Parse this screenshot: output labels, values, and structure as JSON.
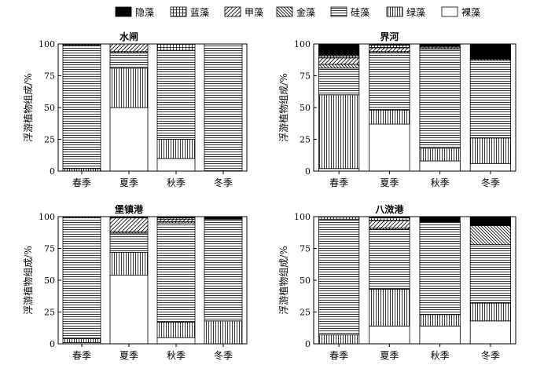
{
  "legend": [
    {
      "key": "hidden",
      "label": "隐藻"
    },
    {
      "key": "blue",
      "label": "蓝藻"
    },
    {
      "key": "dino",
      "label": "甲藻"
    },
    {
      "key": "gold",
      "label": "金藻"
    },
    {
      "key": "diatom",
      "label": "硅藻"
    },
    {
      "key": "green",
      "label": "绿藻"
    },
    {
      "key": "naked",
      "label": "裸藻"
    }
  ],
  "legend_order_bottom_to_top": [
    "naked",
    "green",
    "diatom",
    "gold",
    "dino",
    "blue",
    "hidden"
  ],
  "chart_data": [
    {
      "type": "bar",
      "stacked": true,
      "title": "水闸",
      "ylabel": "浮游植物组成/%",
      "categories": [
        "春季",
        "夏季",
        "秋季",
        "冬季"
      ],
      "ylim": [
        0,
        100
      ],
      "yticks": [
        0,
        25,
        50,
        75,
        100
      ],
      "series": [
        {
          "key": "naked",
          "name": "裸藻",
          "values": [
            0,
            50,
            10,
            0
          ]
        },
        {
          "key": "green",
          "name": "绿藻",
          "values": [
            2,
            31,
            15,
            0
          ]
        },
        {
          "key": "diatom",
          "name": "硅藻",
          "values": [
            97,
            12,
            70,
            100
          ]
        },
        {
          "key": "gold",
          "name": "金藻",
          "values": [
            0,
            1,
            0,
            0
          ]
        },
        {
          "key": "dino",
          "name": "甲藻",
          "values": [
            0,
            6,
            0,
            0
          ]
        },
        {
          "key": "blue",
          "name": "蓝藻",
          "values": [
            1,
            0,
            5,
            0
          ]
        },
        {
          "key": "hidden",
          "name": "隐藻",
          "values": [
            0,
            0,
            0,
            0
          ]
        }
      ]
    },
    {
      "type": "bar",
      "stacked": true,
      "title": "界河",
      "ylabel": "浮游植物组成/%",
      "categories": [
        "春季",
        "夏季",
        "秋季",
        "冬季"
      ],
      "ylim": [
        0,
        100
      ],
      "yticks": [
        0,
        25,
        50,
        75,
        100
      ],
      "series": [
        {
          "key": "naked",
          "name": "裸藻",
          "values": [
            2,
            37,
            8,
            6
          ]
        },
        {
          "key": "green",
          "name": "绿藻",
          "values": [
            58,
            11,
            10,
            20
          ]
        },
        {
          "key": "diatom",
          "name": "硅藻",
          "values": [
            21,
            45,
            78,
            61
          ]
        },
        {
          "key": "gold",
          "name": "金藻",
          "values": [
            3,
            1,
            1,
            1
          ]
        },
        {
          "key": "dino",
          "name": "甲藻",
          "values": [
            5,
            3,
            1,
            0
          ]
        },
        {
          "key": "blue",
          "name": "蓝藻",
          "values": [
            2,
            2,
            0,
            0
          ]
        },
        {
          "key": "hidden",
          "name": "隐藻",
          "values": [
            9,
            1,
            2,
            12
          ]
        }
      ]
    },
    {
      "type": "bar",
      "stacked": true,
      "title": "堡镇港",
      "ylabel": "浮游植物组成/%",
      "categories": [
        "春季",
        "夏季",
        "秋季",
        "冬季"
      ],
      "ylim": [
        0,
        100
      ],
      "yticks": [
        0,
        25,
        50,
        75,
        100
      ],
      "series": [
        {
          "key": "naked",
          "name": "裸藻",
          "values": [
            1,
            54,
            5,
            0
          ]
        },
        {
          "key": "green",
          "name": "绿藻",
          "values": [
            3,
            18,
            12,
            18
          ]
        },
        {
          "key": "diatom",
          "name": "硅藻",
          "values": [
            95,
            15,
            78,
            80
          ]
        },
        {
          "key": "gold",
          "name": "金藻",
          "values": [
            0,
            1,
            1,
            0
          ]
        },
        {
          "key": "dino",
          "name": "甲藻",
          "values": [
            0,
            11,
            2,
            0
          ]
        },
        {
          "key": "blue",
          "name": "蓝藻",
          "values": [
            1,
            0,
            1,
            0
          ]
        },
        {
          "key": "hidden",
          "name": "隐藻",
          "values": [
            0,
            1,
            1,
            2
          ]
        }
      ]
    },
    {
      "type": "bar",
      "stacked": true,
      "title": "八滧港",
      "ylabel": "浮游植物组成/%",
      "categories": [
        "春季",
        "夏季",
        "秋季",
        "冬季"
      ],
      "ylim": [
        0,
        100
      ],
      "yticks": [
        0,
        25,
        50,
        75,
        100
      ],
      "series": [
        {
          "key": "naked",
          "name": "裸藻",
          "values": [
            0,
            14,
            14,
            18
          ]
        },
        {
          "key": "green",
          "name": "绿藻",
          "values": [
            7,
            29,
            9,
            14
          ]
        },
        {
          "key": "diatom",
          "name": "硅藻",
          "values": [
            91,
            47,
            73,
            46
          ]
        },
        {
          "key": "gold",
          "name": "金藻",
          "values": [
            0,
            1,
            0,
            15
          ]
        },
        {
          "key": "dino",
          "name": "甲藻",
          "values": [
            0,
            6,
            0,
            0
          ]
        },
        {
          "key": "blue",
          "name": "蓝藻",
          "values": [
            2,
            2,
            0,
            0
          ]
        },
        {
          "key": "hidden",
          "name": "隐藻",
          "values": [
            0,
            1,
            4,
            7
          ]
        }
      ]
    }
  ]
}
